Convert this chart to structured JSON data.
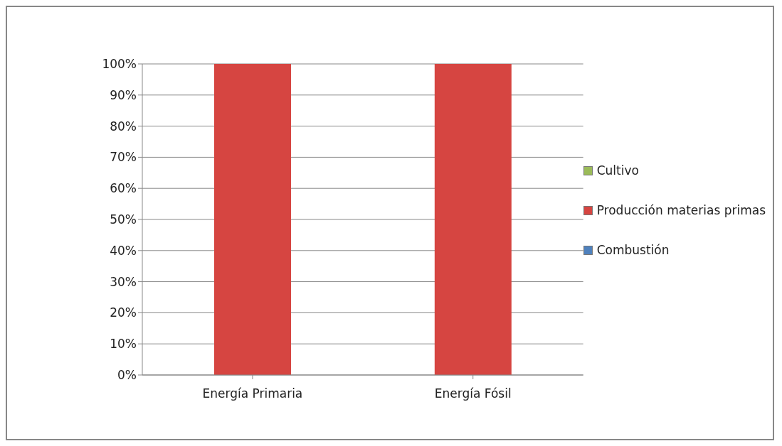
{
  "chart_data": {
    "type": "bar",
    "stacked": true,
    "categories": [
      "Energía Primaria",
      "Energía Fósil"
    ],
    "series": [
      {
        "name": "Combustión",
        "color": "#4f81bd",
        "values": [
          0,
          0
        ]
      },
      {
        "name": "Producción materias primas",
        "color": "#d64541",
        "values": [
          100,
          100
        ]
      },
      {
        "name": "Cultivo",
        "color": "#9bbb59",
        "values": [
          0,
          0
        ]
      }
    ],
    "ylim": [
      0,
      100
    ],
    "yticks": [
      {
        "value": 0,
        "label": "0%"
      },
      {
        "value": 10,
        "label": "10%"
      },
      {
        "value": 20,
        "label": "20%"
      },
      {
        "value": 30,
        "label": "30%"
      },
      {
        "value": 40,
        "label": "40%"
      },
      {
        "value": 50,
        "label": "50%"
      },
      {
        "value": 60,
        "label": "60%"
      },
      {
        "value": 70,
        "label": "70%"
      },
      {
        "value": 80,
        "label": "80%"
      },
      {
        "value": 90,
        "label": "90%"
      },
      {
        "value": 100,
        "label": "100%"
      }
    ],
    "grid": "y",
    "legend": "right"
  }
}
